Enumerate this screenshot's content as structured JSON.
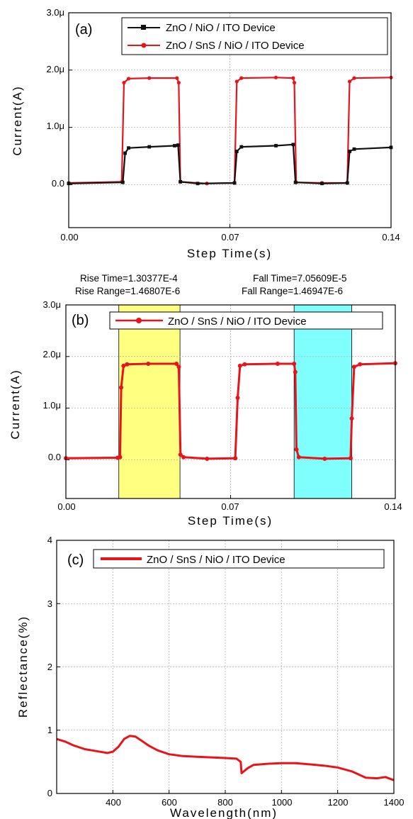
{
  "colors": {
    "red": "#e8141c",
    "black": "#111111",
    "yellow": "#ffff80",
    "cyan": "#80ffff",
    "grid": "#b0b0b0"
  },
  "chart_data": [
    {
      "type": "line",
      "panel_label": "(a)",
      "xlabel": "Step Time(s)",
      "ylabel": "Current(A)",
      "xlim": [
        0,
        0.14
      ],
      "ylim": [
        -0.75,
        3.0
      ],
      "x_ticks": [
        "0.00",
        "0.07",
        "0.14"
      ],
      "y_ticks": [
        "0.0",
        "1.0μ",
        "2.0μ",
        "3.0μ"
      ],
      "grid": true,
      "legend_position": "top-right",
      "series": [
        {
          "name": "ZnO / NiO / ITO Device",
          "color": "black",
          "points": [
            [
              0.0,
              0.02
            ],
            [
              0.0235,
              0.04
            ],
            [
              0.0245,
              0.55
            ],
            [
              0.026,
              0.64
            ],
            [
              0.035,
              0.66
            ],
            [
              0.046,
              0.68
            ],
            [
              0.0475,
              0.69
            ],
            [
              0.0485,
              0.05
            ],
            [
              0.056,
              0.02
            ],
            [
              0.072,
              0.03
            ],
            [
              0.073,
              0.58
            ],
            [
              0.075,
              0.66
            ],
            [
              0.09,
              0.68
            ],
            [
              0.0975,
              0.7
            ],
            [
              0.0985,
              0.04
            ],
            [
              0.11,
              0.02
            ],
            [
              0.121,
              0.03
            ],
            [
              0.122,
              0.58
            ],
            [
              0.124,
              0.62
            ],
            [
              0.14,
              0.65
            ]
          ]
        },
        {
          "name": "ZnO / SnS / NiO / ITO Device",
          "color": "red",
          "points": [
            [
              0.0,
              0.03
            ],
            [
              0.023,
              0.05
            ],
            [
              0.024,
              1.78
            ],
            [
              0.026,
              1.85
            ],
            [
              0.035,
              1.86
            ],
            [
              0.047,
              1.86
            ],
            [
              0.0478,
              1.78
            ],
            [
              0.0485,
              0.05
            ],
            [
              0.06,
              0.02
            ],
            [
              0.072,
              0.03
            ],
            [
              0.073,
              1.8
            ],
            [
              0.075,
              1.86
            ],
            [
              0.09,
              1.87
            ],
            [
              0.0975,
              1.86
            ],
            [
              0.098,
              1.78
            ],
            [
              0.0988,
              0.04
            ],
            [
              0.11,
              0.03
            ],
            [
              0.121,
              0.03
            ],
            [
              0.122,
              1.8
            ],
            [
              0.124,
              1.86
            ],
            [
              0.14,
              1.87
            ]
          ]
        }
      ]
    },
    {
      "type": "line",
      "panel_label": "(b)",
      "xlabel": "Step Time(s)",
      "ylabel": "Current(A)",
      "xlim": [
        0,
        0.14
      ],
      "ylim": [
        -0.75,
        3.0
      ],
      "x_ticks": [
        "0.00",
        "0.07",
        "0.14"
      ],
      "y_ticks": [
        "0.0",
        "1.0μ",
        "2.0μ",
        "3.0μ"
      ],
      "grid": true,
      "legend_position": "top-right",
      "annotations": {
        "rise_time": "Rise Time=1.30377E-4",
        "fall_time": "Fall Time=7.05609E-5",
        "rise_range": "Rise Range=1.46807E-6",
        "fall_range": "Fall Range=1.46947E-6"
      },
      "highlight_regions": [
        {
          "x_range": [
            0.0225,
            0.0485
          ],
          "color": "yellow"
        },
        {
          "x_range": [
            0.097,
            0.1215
          ],
          "color": "cyan"
        }
      ],
      "series": [
        {
          "name": "ZnO / SnS / NiO / ITO Device",
          "color": "red",
          "points": [
            [
              0.0,
              0.03
            ],
            [
              0.022,
              0.04
            ],
            [
              0.023,
              0.05
            ],
            [
              0.0235,
              1.4
            ],
            [
              0.0245,
              1.82
            ],
            [
              0.026,
              1.85
            ],
            [
              0.035,
              1.86
            ],
            [
              0.047,
              1.86
            ],
            [
              0.048,
              1.8
            ],
            [
              0.0487,
              0.1
            ],
            [
              0.05,
              0.05
            ],
            [
              0.06,
              0.02
            ],
            [
              0.072,
              0.03
            ],
            [
              0.073,
              1.2
            ],
            [
              0.074,
              1.82
            ],
            [
              0.076,
              1.85
            ],
            [
              0.09,
              1.86
            ],
            [
              0.097,
              1.86
            ],
            [
              0.0975,
              1.7
            ],
            [
              0.098,
              0.2
            ],
            [
              0.099,
              0.05
            ],
            [
              0.11,
              0.02
            ],
            [
              0.121,
              0.03
            ],
            [
              0.1215,
              0.8
            ],
            [
              0.1225,
              1.8
            ],
            [
              0.125,
              1.85
            ],
            [
              0.14,
              1.87
            ]
          ]
        }
      ]
    },
    {
      "type": "line",
      "panel_label": "(c)",
      "xlabel": "Wavelength(nm)",
      "ylabel": "Reflectance(%)",
      "xlim": [
        200,
        1400
      ],
      "ylim": [
        0,
        4
      ],
      "x_ticks": [
        "400",
        "600",
        "800",
        "1000",
        "1200",
        "1400"
      ],
      "y_ticks": [
        "0",
        "1",
        "2",
        "3",
        "4"
      ],
      "grid": true,
      "legend_position": "top-right",
      "series": [
        {
          "name": "ZnO / SnS / NiO / ITO Device",
          "color": "red",
          "points": [
            [
              200,
              0.86
            ],
            [
              230,
              0.82
            ],
            [
              260,
              0.76
            ],
            [
              300,
              0.7
            ],
            [
              340,
              0.67
            ],
            [
              380,
              0.64
            ],
            [
              400,
              0.66
            ],
            [
              420,
              0.74
            ],
            [
              440,
              0.86
            ],
            [
              460,
              0.91
            ],
            [
              480,
              0.9
            ],
            [
              500,
              0.84
            ],
            [
              530,
              0.75
            ],
            [
              560,
              0.68
            ],
            [
              600,
              0.62
            ],
            [
              650,
              0.59
            ],
            [
              700,
              0.58
            ],
            [
              750,
              0.57
            ],
            [
              800,
              0.56
            ],
            [
              840,
              0.55
            ],
            [
              855,
              0.5
            ],
            [
              858,
              0.32
            ],
            [
              880,
              0.4
            ],
            [
              900,
              0.45
            ],
            [
              950,
              0.47
            ],
            [
              1000,
              0.48
            ],
            [
              1050,
              0.48
            ],
            [
              1100,
              0.46
            ],
            [
              1150,
              0.44
            ],
            [
              1200,
              0.41
            ],
            [
              1250,
              0.35
            ],
            [
              1300,
              0.25
            ],
            [
              1340,
              0.24
            ],
            [
              1370,
              0.26
            ],
            [
              1400,
              0.21
            ]
          ]
        }
      ]
    }
  ]
}
